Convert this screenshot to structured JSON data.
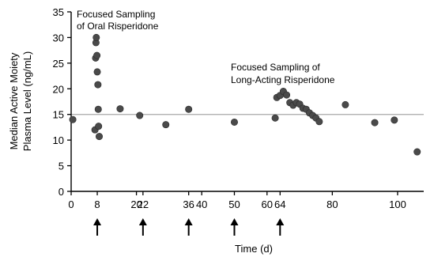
{
  "chart_data": {
    "type": "scatter",
    "xlabel": "Time (d)",
    "ylabel_line1": "Median Active Moiety",
    "ylabel_line2": "Plasma Level (ng/mL)",
    "ylim": [
      0,
      35
    ],
    "y_ticks": [
      0,
      5,
      10,
      15,
      20,
      25,
      30,
      35
    ],
    "x_ticks": [
      {
        "value": 0,
        "label": "0"
      },
      {
        "value": 8,
        "label": "8"
      },
      {
        "value": 20,
        "label": "20"
      },
      {
        "value": 22,
        "label": "22"
      },
      {
        "value": 36,
        "label": "36"
      },
      {
        "value": 40,
        "label": "40"
      },
      {
        "value": 50,
        "label": "50"
      },
      {
        "value": 60,
        "label": "60"
      },
      {
        "value": 64,
        "label": "64"
      },
      {
        "value": 80,
        "label": "80"
      },
      {
        "value": 100,
        "label": "100"
      }
    ],
    "reference_line_y": 15,
    "arrows_at_x": [
      8,
      22,
      36,
      50,
      64
    ],
    "annotations": [
      {
        "line1": "Focused Sampling",
        "line2": "of Oral Risperidone"
      },
      {
        "line1": "Focused Sampling of",
        "line2": "Long-Acting Risperidone"
      }
    ],
    "points": [
      {
        "x": 0.5,
        "y": 14
      },
      {
        "x": 7.3,
        "y": 12
      },
      {
        "x": 7.5,
        "y": 26
      },
      {
        "x": 7.6,
        "y": 29
      },
      {
        "x": 7.7,
        "y": 30
      },
      {
        "x": 7.9,
        "y": 26.5
      },
      {
        "x": 8.0,
        "y": 23.3
      },
      {
        "x": 8.2,
        "y": 20.8
      },
      {
        "x": 8.3,
        "y": 16
      },
      {
        "x": 8.4,
        "y": 12.7
      },
      {
        "x": 8.6,
        "y": 10.7
      },
      {
        "x": 15,
        "y": 16.1
      },
      {
        "x": 21,
        "y": 14.8
      },
      {
        "x": 29,
        "y": 13
      },
      {
        "x": 36,
        "y": 16
      },
      {
        "x": 50,
        "y": 13.5
      },
      {
        "x": 62.5,
        "y": 14.3
      },
      {
        "x": 63,
        "y": 18.3
      },
      {
        "x": 64,
        "y": 18.7
      },
      {
        "x": 65,
        "y": 19.5
      },
      {
        "x": 66,
        "y": 18.8
      },
      {
        "x": 67,
        "y": 17.3
      },
      {
        "x": 68,
        "y": 16.8
      },
      {
        "x": 69,
        "y": 17.3
      },
      {
        "x": 70,
        "y": 17
      },
      {
        "x": 71,
        "y": 16.2
      },
      {
        "x": 72,
        "y": 16
      },
      {
        "x": 73,
        "y": 15.3
      },
      {
        "x": 74,
        "y": 14.8
      },
      {
        "x": 75,
        "y": 14.3
      },
      {
        "x": 76,
        "y": 13.6
      },
      {
        "x": 84,
        "y": 16.9
      },
      {
        "x": 93,
        "y": 13.4
      },
      {
        "x": 99,
        "y": 13.9
      },
      {
        "x": 106,
        "y": 7.7
      }
    ]
  }
}
